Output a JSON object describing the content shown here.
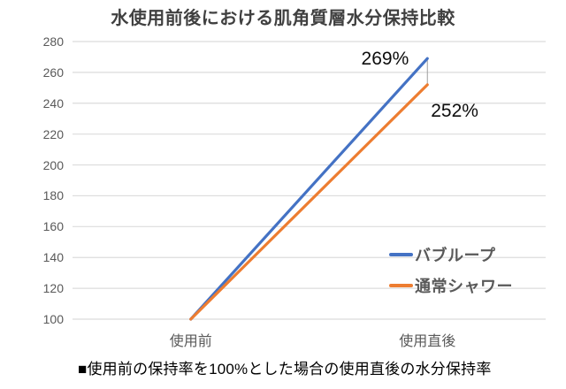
{
  "chart_data": {
    "type": "line",
    "title": "水使用前後における肌角質層水分保持比較",
    "categories": [
      "使用前",
      "使用直後"
    ],
    "series": [
      {
        "name": "バブループ",
        "values": [
          100,
          269
        ],
        "color": "#4472C4",
        "end_label": "269%"
      },
      {
        "name": "通常シャワー",
        "values": [
          100,
          252
        ],
        "color": "#ED7D31",
        "end_label": "252%"
      }
    ],
    "ylim": [
      100,
      280
    ],
    "yticks": [
      280,
      260,
      240,
      220,
      200,
      180,
      160,
      140,
      120,
      100
    ],
    "xlabel": "",
    "ylabel": "",
    "grid": "horizontal-only",
    "gridline_color": "#dcdcdc",
    "axis_text_color": "#595959",
    "high_low_connector": true,
    "high_low_connector_color": "#9e9e9e",
    "legend_position": "right-middle-overlay",
    "footnote": "■使用前の保持率を100%とした場合の使用直後の水分保持率"
  }
}
